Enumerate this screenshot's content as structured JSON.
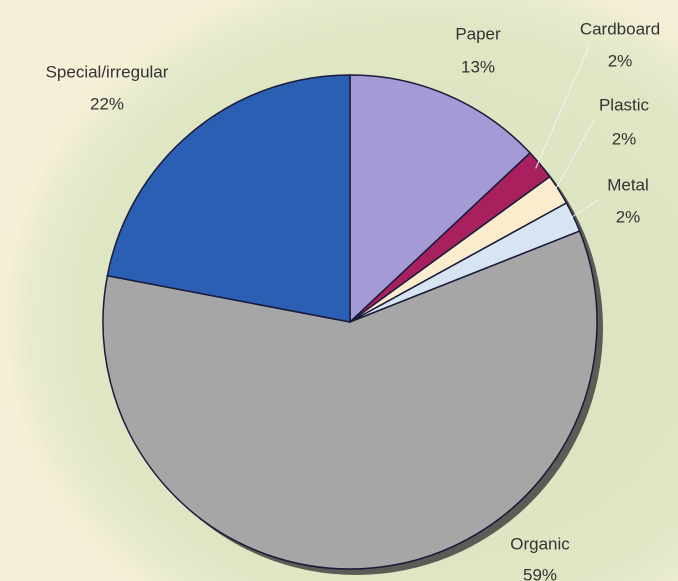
{
  "chart_data": {
    "type": "pie",
    "categories": [
      "Paper",
      "Cardboard",
      "Plastic",
      "Metal",
      "Organic",
      "Special/irregular"
    ],
    "values": [
      13,
      2,
      2,
      2,
      59,
      22
    ],
    "value_labels": [
      "13%",
      "2%",
      "2%",
      "2%",
      "59%",
      "22%"
    ],
    "colors": [
      "#a39ad6",
      "#a8205e",
      "#fbeccd",
      "#d8e4f2",
      "#a6a6a6",
      "#2b5fb3"
    ]
  }
}
